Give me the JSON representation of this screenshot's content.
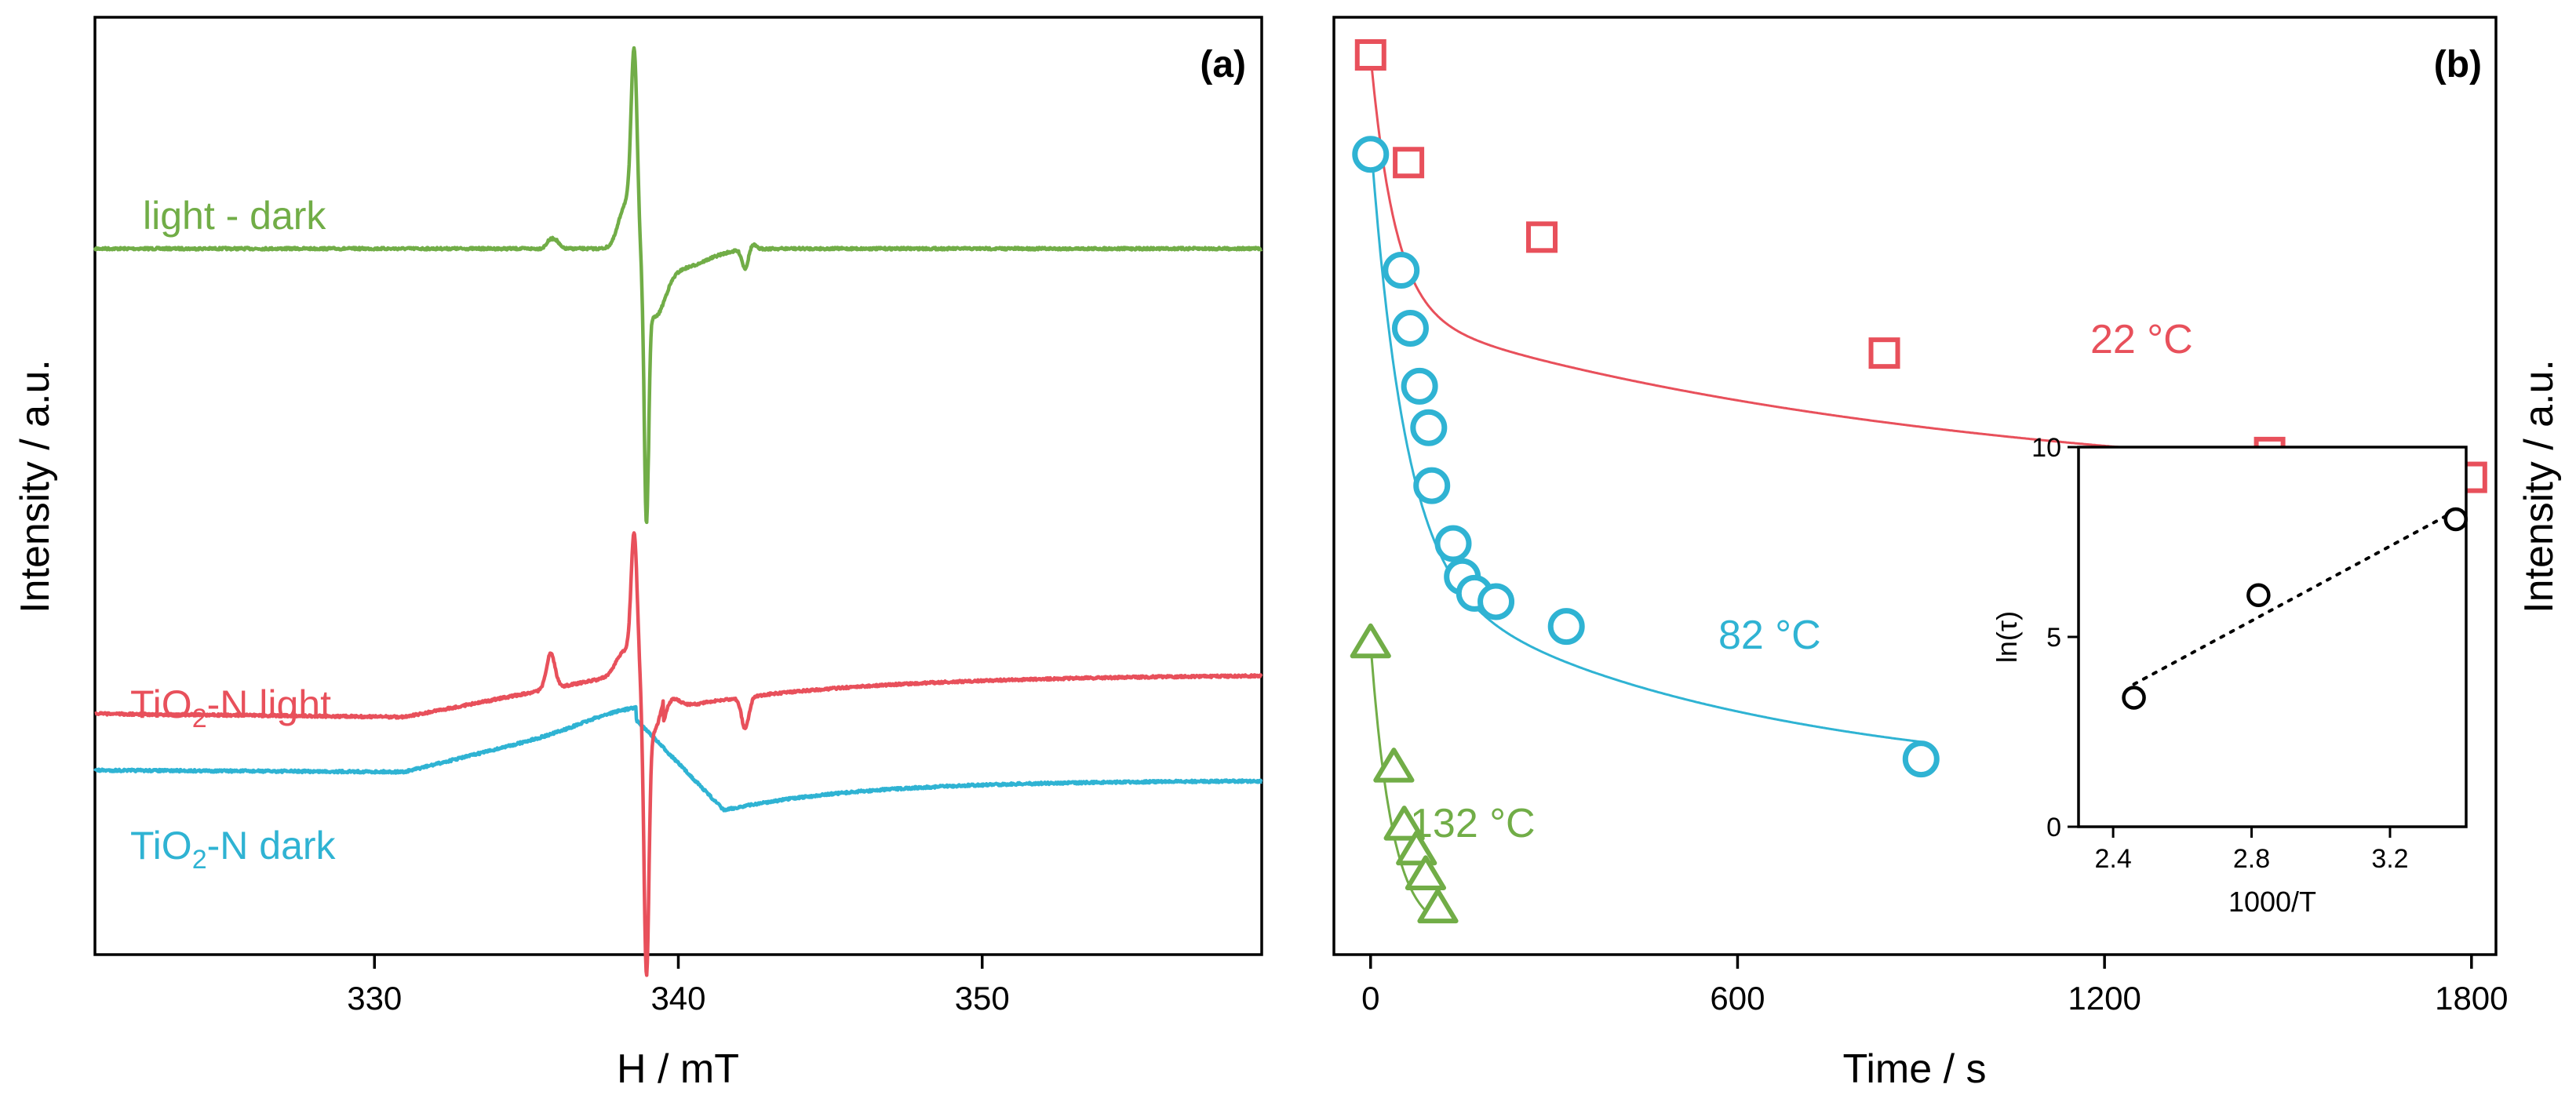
{
  "colors": {
    "green": "#71ad47",
    "red": "#e8505b",
    "cyan": "#2fb3d3",
    "black": "#000000"
  },
  "chart_data": [
    {
      "panel_label": "(a)",
      "type": "line",
      "title": "",
      "xlabel": "H / mT",
      "ylabel": "Intensity / a.u.",
      "xlim": [
        320.8,
        359.2
      ],
      "x_ticks": [
        330,
        340,
        350
      ],
      "x_tick_labels": [
        "330",
        "340",
        "350"
      ],
      "y_ticks_shown": false,
      "series": [
        {
          "name": "light - dark",
          "label": "light - dark",
          "color": "#71ad47",
          "baseline": 0,
          "features": [
            {
              "type": "derivative_peak",
              "center": 335.8,
              "width": 0.12,
              "amp": 16
            },
            {
              "type": "derivative_main",
              "center": 338.7,
              "width": 0.18,
              "amp": 235
            },
            {
              "type": "derivative_peak",
              "center": 342.2,
              "width": 0.14,
              "amp": -12
            }
          ]
        },
        {
          "name": "TiO2-N light",
          "label_main": "TiO",
          "label_sub": "2",
          "label_rest": "-N light",
          "color": "#e8505b",
          "baseline": 0
        },
        {
          "name": "TiO2-N dark",
          "label_main": "TiO",
          "label_sub": "2",
          "label_rest": "-N dark",
          "color": "#2fb3d3",
          "baseline": 0
        }
      ]
    },
    {
      "panel_label": "(b)",
      "type": "scatter",
      "xlabel": "Time / s",
      "ylabel": "Intensity / a.u.",
      "xlim": [
        -60,
        1840
      ],
      "x_ticks": [
        0,
        600,
        1200,
        1800
      ],
      "x_tick_labels": [
        "0",
        "600",
        "1200",
        "1800"
      ],
      "y_ticks_shown": false,
      "series": [
        {
          "name": "22 °C",
          "label": "22 °C",
          "color": "#e8505b",
          "marker": "square",
          "x": [
            0,
            62,
            280,
            840,
            1470,
            1800
          ],
          "y": [
            100,
            87,
            78,
            64,
            52,
            49
          ],
          "fit": "exponential decay"
        },
        {
          "name": "82 °C",
          "label": "82 °C",
          "color": "#2fb3d3",
          "marker": "circle",
          "x": [
            0,
            50,
            65,
            80,
            95,
            100,
            135,
            150,
            170,
            205,
            320,
            900
          ],
          "y": [
            88,
            74,
            67,
            60,
            55,
            48,
            41,
            37,
            35,
            34,
            31,
            15
          ],
          "fit": "exponential decay"
        },
        {
          "name": "132 °C",
          "label": "132 °C",
          "color": "#71ad47",
          "marker": "triangle",
          "x": [
            0,
            38,
            55,
            75,
            90,
            110
          ],
          "y": [
            29,
            14,
            7,
            4,
            1,
            -3
          ],
          "fit": "exponential decay"
        }
      ],
      "inset": {
        "type": "scatter",
        "xlabel": "1000/T",
        "ylabel": "ln(τ)",
        "xlim": [
          2.3,
          3.42
        ],
        "ylim": [
          0,
          10
        ],
        "x_ticks": [
          2.4,
          2.8,
          3.2
        ],
        "x_tick_labels": [
          "2.4",
          "2.8",
          "3.2"
        ],
        "y_ticks": [
          0,
          5,
          10
        ],
        "y_tick_labels": [
          "0",
          "5",
          "10"
        ],
        "x": [
          2.46,
          2.82,
          3.39
        ],
        "y": [
          3.4,
          6.1,
          8.1
        ],
        "fit_line": "dotted linear"
      }
    }
  ]
}
